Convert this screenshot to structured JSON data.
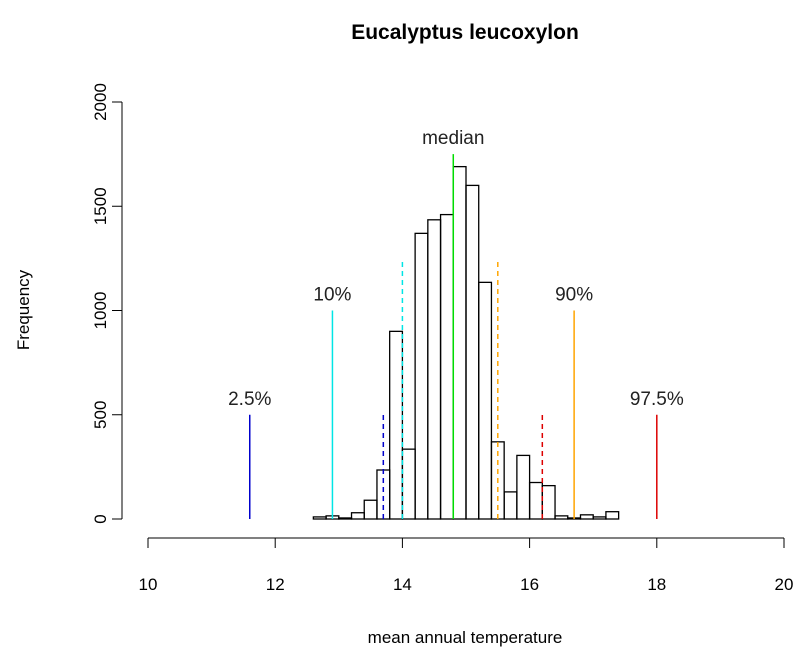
{
  "chart_data": {
    "type": "histogram",
    "title": "Eucalyptus leucoxylon",
    "x_label": "mean annual temperature",
    "y_label": "Frequency",
    "bins": [
      11.2,
      11.4,
      11.6,
      11.8,
      12.0,
      12.2,
      12.4,
      12.6,
      12.8,
      13.0,
      13.2,
      13.4,
      13.6,
      13.8,
      14.0,
      14.2,
      14.4,
      14.6,
      14.8,
      15.0,
      15.2,
      15.4,
      15.6,
      15.8,
      16.0,
      16.2,
      16.4,
      16.6,
      16.8,
      17.0,
      17.2,
      17.4,
      17.6,
      17.8,
      18.0,
      18.2,
      18.4,
      18.6,
      18.8,
      19.0,
      19.2,
      19.4,
      19.6,
      19.8,
      20.0,
      20.2,
      20.4
    ],
    "counts": [
      0,
      0,
      0,
      0,
      0,
      0,
      0,
      10,
      15,
      5,
      30,
      90,
      235,
      900,
      335,
      1370,
      1435,
      1460,
      1690,
      1600,
      1135,
      370,
      130,
      305,
      175,
      160,
      15,
      5,
      20,
      10,
      35,
      0,
      0,
      0,
      0,
      0,
      0,
      0,
      0,
      0,
      0,
      0,
      0,
      0,
      0,
      0
    ],
    "bar_color": "#000000",
    "xlim": [
      10,
      20
    ],
    "xticks": [
      10,
      12,
      14,
      16,
      18,
      20
    ],
    "ylim": [
      0,
      2000
    ],
    "yticks": [
      0,
      500,
      1000,
      1500,
      2000
    ],
    "lines": [
      {
        "label": "2.5%",
        "x": 11.6,
        "height": 500,
        "color": "#0000cc",
        "style": "solid"
      },
      {
        "label": "10%",
        "x": 12.9,
        "height": 1000,
        "color": "#00e5e5",
        "style": "solid"
      },
      {
        "label": "median",
        "x": 14.8,
        "height": 1750,
        "color": "#00dd00",
        "style": "solid"
      },
      {
        "label": "90%",
        "x": 16.7,
        "height": 1000,
        "color": "#ffa500",
        "style": "solid"
      },
      {
        "label": "97.5%",
        "x": 18.0,
        "height": 500,
        "color": "#dd0000",
        "style": "solid"
      },
      {
        "x": 13.7,
        "height": 500,
        "color": "#0000cc",
        "style": "dashed"
      },
      {
        "x": 14.0,
        "height": 1250,
        "color": "#00e5e5",
        "style": "dashed"
      },
      {
        "x": 15.5,
        "height": 1250,
        "color": "#ffa500",
        "style": "dashed"
      },
      {
        "x": 16.2,
        "height": 500,
        "color": "#dd0000",
        "style": "dashed"
      }
    ]
  }
}
